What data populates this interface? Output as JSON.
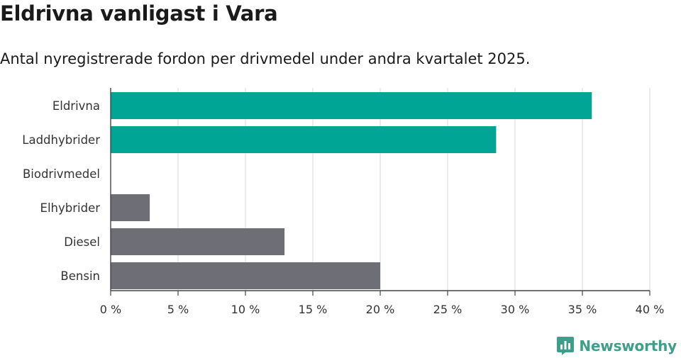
{
  "header": {
    "title": "Eldrivna vanligast i Vara",
    "subtitle": "Antal nyregistrerade fordon per drivmedel under andra kvartalet 2025."
  },
  "brand": {
    "name": "Newsworthy",
    "icon": "bar-chart-speech-bubble-icon",
    "color": "#3d9e8a"
  },
  "chart_data": {
    "type": "bar",
    "orientation": "horizontal",
    "title": "",
    "xlabel": "",
    "ylabel": "",
    "categories": [
      "Eldrivna",
      "Laddhybrider",
      "Biodrivmedel",
      "Elhybrider",
      "Diesel",
      "Bensin"
    ],
    "values": [
      35.7,
      28.6,
      0,
      2.9,
      12.9,
      20.0
    ],
    "colors": [
      "#00a596",
      "#00a596",
      "#6e6e76",
      "#6e6e76",
      "#6e6e76",
      "#6e6e76"
    ],
    "xlim": [
      0,
      40
    ],
    "xticks": [
      0,
      5,
      10,
      15,
      20,
      25,
      30,
      35,
      40
    ],
    "xtick_labels": [
      "0 %",
      "5 %",
      "10 %",
      "15 %",
      "20 %",
      "25 %",
      "30 %",
      "35 %",
      "40 %"
    ],
    "grid": true,
    "legend": "none"
  }
}
